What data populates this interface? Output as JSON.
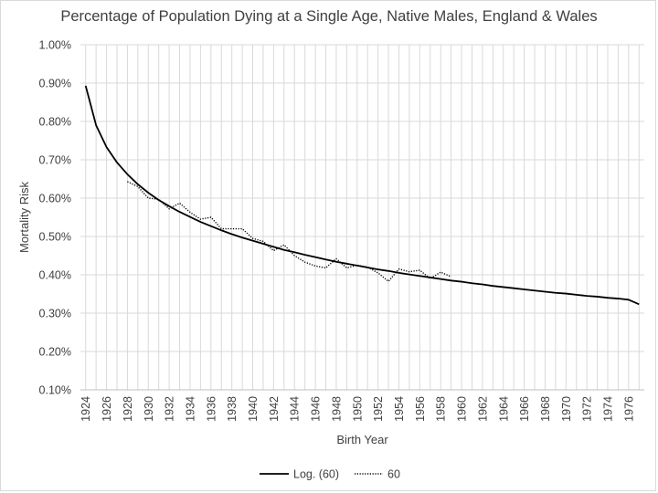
{
  "chart_data": {
    "type": "line",
    "title": "Percentage of Population Dying at a Single Age, Native Males, England & Wales",
    "xlabel": "Birth Year",
    "ylabel": "Mortality Risk",
    "xlim": [
      1923.5,
      1977.5
    ],
    "ylim": [
      0.001,
      0.01
    ],
    "y_tick_labels": [
      "0.10%",
      "0.20%",
      "0.30%",
      "0.40%",
      "0.50%",
      "0.60%",
      "0.70%",
      "0.80%",
      "0.90%",
      "1.00%"
    ],
    "y_tick_values": [
      0.001,
      0.002,
      0.003,
      0.004,
      0.005,
      0.006,
      0.007,
      0.008,
      0.009,
      0.01
    ],
    "x_tick_labels": [
      "1924",
      "1926",
      "1928",
      "1930",
      "1932",
      "1934",
      "1936",
      "1938",
      "1940",
      "1942",
      "1944",
      "1946",
      "1948",
      "1950",
      "1952",
      "1954",
      "1956",
      "1958",
      "1960",
      "1962",
      "1964",
      "1966",
      "1968",
      "1970",
      "1972",
      "1974",
      "1976"
    ],
    "grid": "vertical",
    "legend_position": "bottom",
    "series": [
      {
        "name": "Log. (60)",
        "style": "solid",
        "color": "#000000",
        "x": [
          1924,
          1925,
          1926,
          1927,
          1928,
          1929,
          1930,
          1931,
          1932,
          1933,
          1934,
          1935,
          1936,
          1937,
          1938,
          1939,
          1940,
          1941,
          1942,
          1943,
          1944,
          1945,
          1946,
          1947,
          1948,
          1949,
          1950,
          1951,
          1952,
          1953,
          1954,
          1955,
          1956,
          1957,
          1958,
          1959,
          1960,
          1961,
          1962,
          1963,
          1964,
          1965,
          1966,
          1967,
          1968,
          1969,
          1970,
          1971,
          1972,
          1973,
          1974,
          1975,
          1976,
          1977
        ],
        "values": [
          0.00893,
          0.0079,
          0.00733,
          0.00693,
          0.00662,
          0.00636,
          0.00614,
          0.00595,
          0.00579,
          0.00564,
          0.00551,
          0.00538,
          0.00527,
          0.00516,
          0.00506,
          0.00497,
          0.00489,
          0.00481,
          0.00473,
          0.00465,
          0.00459,
          0.00452,
          0.00446,
          0.0044,
          0.00434,
          0.00429,
          0.00424,
          0.00419,
          0.00414,
          0.0041,
          0.00405,
          0.00401,
          0.00397,
          0.00393,
          0.00389,
          0.00385,
          0.00382,
          0.00378,
          0.00375,
          0.00371,
          0.00368,
          0.00365,
          0.00362,
          0.00359,
          0.00356,
          0.00353,
          0.00351,
          0.00348,
          0.00345,
          0.00343,
          0.0034,
          0.00338,
          0.00335,
          0.00323
        ]
      },
      {
        "name": "60",
        "style": "dotted",
        "color": "#000000",
        "x": [
          1928,
          1929,
          1930,
          1931,
          1932,
          1933,
          1934,
          1935,
          1936,
          1937,
          1938,
          1939,
          1940,
          1941,
          1942,
          1943,
          1944,
          1945,
          1946,
          1947,
          1948,
          1949,
          1950,
          1951,
          1952,
          1953,
          1954,
          1955,
          1956,
          1957,
          1958,
          1959
        ],
        "values": [
          0.00643,
          0.0063,
          0.006,
          0.00597,
          0.00572,
          0.00587,
          0.00563,
          0.00545,
          0.0055,
          0.0052,
          0.0052,
          0.0052,
          0.00495,
          0.00487,
          0.00463,
          0.00478,
          0.0045,
          0.00433,
          0.00423,
          0.00418,
          0.00442,
          0.00418,
          0.00425,
          0.0042,
          0.00405,
          0.00383,
          0.00415,
          0.00408,
          0.00412,
          0.0039,
          0.00407,
          0.00395
        ]
      }
    ]
  }
}
